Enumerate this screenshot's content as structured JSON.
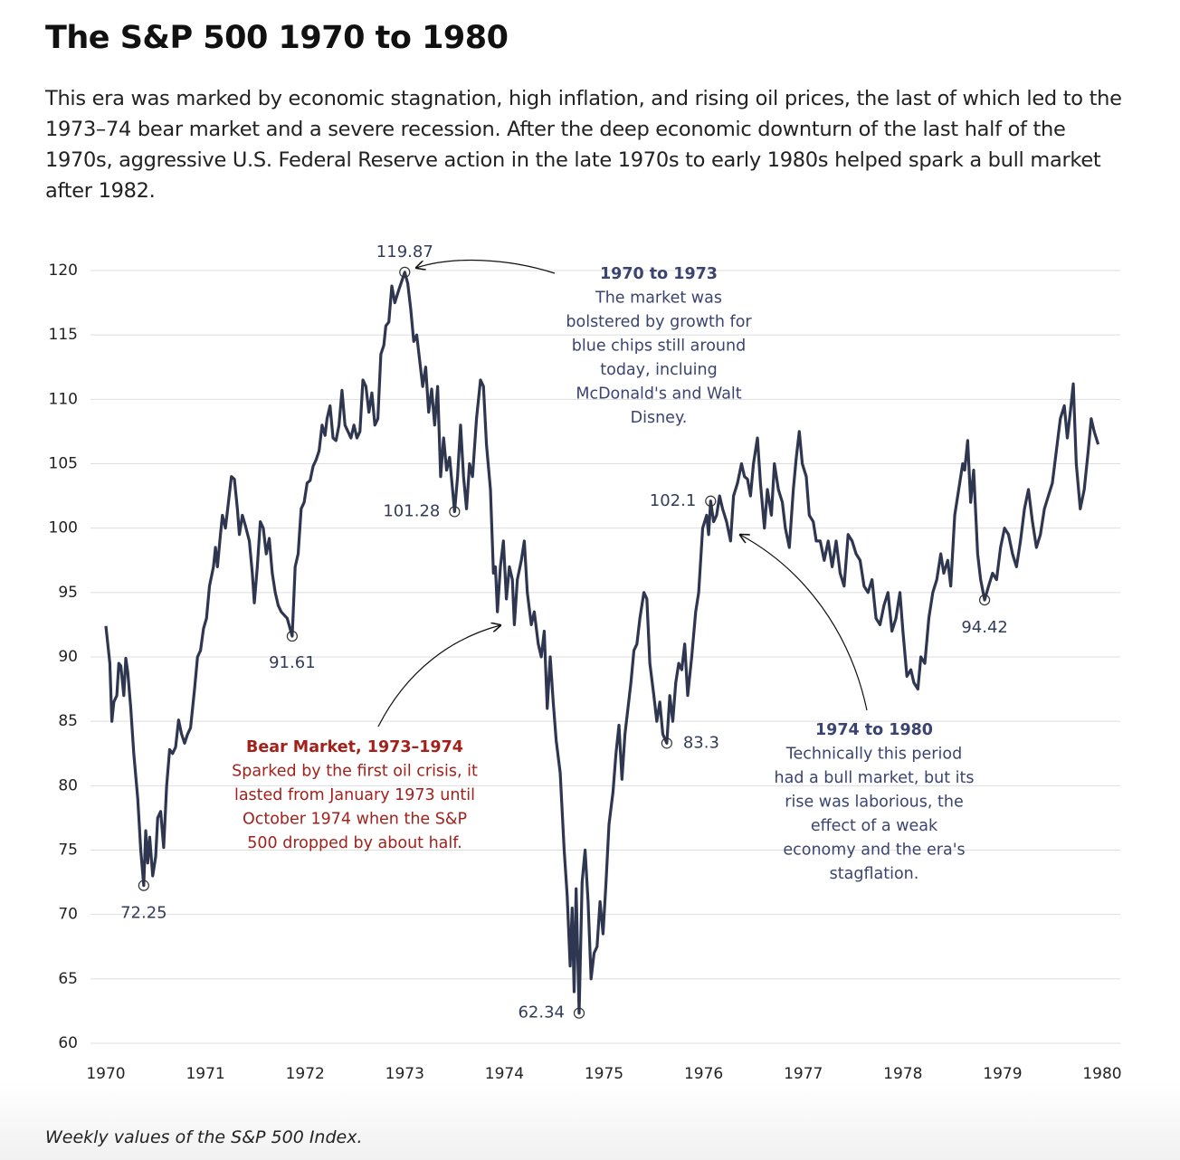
{
  "chart_data": {
    "type": "line",
    "title": "The S&P 500 1970 to 1980",
    "subtitle": "This era was marked by economic stagnation, high inflation, and rising oil prices, the last of which led to the 1973–74 bear market and a severe recession. After the deep economic downturn of the last half of the 1970s, aggressive U.S. Federal Reserve action in the late 1970s to early 1980s helped spark a bull market after 1982.",
    "footnote": "Weekly values of the S&P 500 Index.",
    "color": "#2f3650",
    "grid": true,
    "xlim": [
      1970,
      1980
    ],
    "ylim": [
      60,
      120
    ],
    "xticks": [
      1970,
      1971,
      1972,
      1973,
      1974,
      1975,
      1976,
      1977,
      1978,
      1979,
      1980
    ],
    "yticks": [
      60,
      65,
      70,
      75,
      80,
      85,
      90,
      95,
      100,
      105,
      110,
      115,
      120
    ],
    "x": [
      1970.0,
      1970.04,
      1970.06,
      1970.08,
      1970.11,
      1970.13,
      1970.15,
      1970.18,
      1970.2,
      1970.22,
      1970.25,
      1970.28,
      1970.32,
      1970.35,
      1970.38,
      1970.4,
      1970.42,
      1970.44,
      1970.47,
      1970.5,
      1970.52,
      1970.55,
      1970.58,
      1970.61,
      1970.64,
      1970.67,
      1970.7,
      1970.73,
      1970.76,
      1970.79,
      1970.82,
      1970.85,
      1970.89,
      1970.92,
      1970.95,
      1970.98,
      1971.01,
      1971.04,
      1971.08,
      1971.1,
      1971.12,
      1971.15,
      1971.17,
      1971.2,
      1971.23,
      1971.26,
      1971.29,
      1971.32,
      1971.34,
      1971.37,
      1971.4,
      1971.44,
      1971.47,
      1971.49,
      1971.52,
      1971.55,
      1971.58,
      1971.61,
      1971.64,
      1971.67,
      1971.7,
      1971.73,
      1971.76,
      1971.82,
      1971.87,
      1971.9,
      1971.93,
      1971.96,
      1971.99,
      1972.02,
      1972.05,
      1972.08,
      1972.11,
      1972.14,
      1972.17,
      1972.2,
      1972.22,
      1972.25,
      1972.28,
      1972.31,
      1972.34,
      1972.37,
      1972.4,
      1972.43,
      1972.46,
      1972.49,
      1972.52,
      1972.55,
      1972.58,
      1972.61,
      1972.64,
      1972.67,
      1972.7,
      1972.73,
      1972.76,
      1972.79,
      1972.81,
      1972.84,
      1972.87,
      1972.9,
      1972.94,
      1973.0,
      1973.03,
      1973.06,
      1973.09,
      1973.12,
      1973.15,
      1973.18,
      1973.21,
      1973.24,
      1973.27,
      1973.3,
      1973.33,
      1973.36,
      1973.39,
      1973.42,
      1973.45,
      1973.5,
      1973.53,
      1973.56,
      1973.59,
      1973.62,
      1973.65,
      1973.68,
      1973.72,
      1973.76,
      1973.79,
      1973.82,
      1973.86,
      1973.89,
      1973.91,
      1973.93,
      1973.96,
      1973.99,
      1974.02,
      1974.05,
      1974.08,
      1974.1,
      1974.13,
      1974.17,
      1974.2,
      1974.23,
      1974.27,
      1974.3,
      1974.34,
      1974.37,
      1974.4,
      1974.43,
      1974.46,
      1974.49,
      1974.52,
      1974.56,
      1974.6,
      1974.63,
      1974.66,
      1974.68,
      1974.7,
      1974.72,
      1974.75,
      1974.78,
      1974.81,
      1974.84,
      1974.87,
      1974.9,
      1974.93,
      1974.96,
      1974.99,
      1975.02,
      1975.05,
      1975.09,
      1975.12,
      1975.15,
      1975.18,
      1975.21,
      1975.24,
      1975.27,
      1975.3,
      1975.33,
      1975.36,
      1975.4,
      1975.43,
      1975.46,
      1975.5,
      1975.53,
      1975.56,
      1975.59,
      1975.63,
      1975.66,
      1975.69,
      1975.72,
      1975.75,
      1975.78,
      1975.81,
      1975.84,
      1975.88,
      1975.92,
      1975.95,
      1975.99,
      1976.03,
      1976.05,
      1976.07,
      1976.1,
      1976.13,
      1976.16,
      1976.19,
      1976.23,
      1976.27,
      1976.3,
      1976.34,
      1976.38,
      1976.41,
      1976.44,
      1976.47,
      1976.5,
      1976.54,
      1976.57,
      1976.61,
      1976.64,
      1976.68,
      1976.71,
      1976.75,
      1976.79,
      1976.82,
      1976.86,
      1976.9,
      1976.93,
      1976.96,
      1976.99,
      1977.03,
      1977.06,
      1977.1,
      1977.13,
      1977.17,
      1977.21,
      1977.25,
      1977.29,
      1977.33,
      1977.37,
      1977.41,
      1977.45,
      1977.49,
      1977.53,
      1977.57,
      1977.61,
      1977.65,
      1977.69,
      1977.73,
      1977.77,
      1977.81,
      1977.85,
      1977.89,
      1977.93,
      1977.97,
      1978.0,
      1978.04,
      1978.08,
      1978.11,
      1978.15,
      1978.18,
      1978.22,
      1978.26,
      1978.3,
      1978.34,
      1978.38,
      1978.41,
      1978.45,
      1978.48,
      1978.52,
      1978.56,
      1978.6,
      1978.62,
      1978.65,
      1978.68,
      1978.71,
      1978.75,
      1978.78,
      1978.82,
      1978.86,
      1978.9,
      1978.94,
      1978.98,
      1979.02,
      1979.06,
      1979.1,
      1979.14,
      1979.18,
      1979.22,
      1979.26,
      1979.3,
      1979.34,
      1979.38,
      1979.42,
      1979.46,
      1979.5,
      1979.54,
      1979.58,
      1979.62,
      1979.65,
      1979.68,
      1979.71,
      1979.74,
      1979.78,
      1979.82,
      1979.86,
      1979.89,
      1979.92,
      1979.96
    ],
    "values": [
      92.4,
      89.5,
      85.0,
      86.5,
      87.0,
      89.5,
      89.3,
      87.0,
      89.9,
      88.8,
      86.0,
      82.5,
      79.0,
      75.0,
      72.25,
      76.5,
      74.0,
      76.0,
      73.0,
      74.5,
      77.5,
      78.0,
      75.2,
      80.0,
      82.8,
      82.5,
      83.0,
      85.1,
      84.0,
      83.3,
      84.0,
      84.5,
      87.5,
      90.0,
      90.5,
      92.2,
      93.0,
      95.5,
      97.0,
      98.5,
      97.0,
      99.5,
      101.0,
      100.0,
      102.0,
      104.0,
      103.8,
      101.5,
      99.5,
      101.0,
      100.2,
      99.0,
      96.5,
      94.2,
      97.0,
      100.5,
      100.0,
      98.0,
      99.2,
      96.5,
      95.0,
      94.0,
      93.5,
      93.0,
      91.61,
      97.0,
      98.0,
      101.5,
      102.0,
      103.5,
      103.7,
      104.8,
      105.3,
      106.0,
      108.0,
      107.2,
      108.5,
      109.5,
      107.0,
      106.8,
      108.0,
      110.7,
      108.0,
      107.5,
      107.0,
      108.0,
      107.0,
      107.5,
      111.5,
      111.0,
      109.0,
      110.5,
      108.0,
      108.5,
      113.5,
      114.2,
      115.7,
      116.0,
      118.8,
      117.5,
      118.5,
      119.87,
      119.0,
      117.0,
      114.5,
      115.0,
      113.0,
      111.0,
      112.5,
      109.0,
      110.8,
      108.0,
      111.0,
      104.0,
      107.0,
      104.5,
      105.5,
      101.28,
      104.0,
      108.0,
      104.0,
      101.5,
      105.0,
      104.0,
      108.5,
      111.5,
      111.0,
      106.5,
      103.0,
      96.5,
      97.0,
      93.5,
      97.0,
      99.0,
      94.5,
      97.0,
      96.0,
      92.5,
      96.0,
      97.5,
      99.0,
      95.0,
      92.5,
      93.5,
      91.0,
      90.0,
      92.0,
      86.0,
      90.0,
      86.5,
      83.5,
      81.0,
      75.0,
      71.5,
      66.0,
      70.5,
      64.0,
      72.0,
      62.34,
      72.5,
      75.0,
      71.0,
      65.0,
      67.0,
      67.5,
      71.0,
      68.5,
      72.5,
      77.0,
      79.5,
      82.5,
      84.7,
      80.5,
      84.0,
      86.0,
      88.0,
      90.5,
      91.0,
      93.0,
      95.0,
      94.5,
      89.5,
      87.0,
      85.0,
      86.5,
      84.0,
      83.3,
      87.0,
      85.0,
      88.0,
      89.5,
      89.0,
      91.0,
      87.0,
      90.0,
      93.5,
      95.0,
      100.0,
      101.0,
      99.5,
      102.1,
      100.5,
      101.0,
      102.5,
      101.5,
      100.5,
      99.0,
      102.5,
      103.5,
      105.0,
      104.0,
      103.8,
      102.5,
      105.0,
      107.0,
      103.5,
      100.0,
      103.0,
      101.0,
      105.0,
      103.0,
      102.0,
      100.0,
      98.5,
      103.0,
      105.5,
      107.5,
      105.0,
      104.0,
      101.0,
      100.5,
      99.0,
      99.0,
      97.5,
      99.0,
      97.0,
      99.0,
      96.5,
      95.5,
      99.5,
      99.0,
      98.0,
      97.5,
      95.5,
      95.0,
      96.0,
      93.0,
      92.5,
      94.0,
      95.0,
      92.0,
      93.0,
      95.0,
      92.0,
      88.5,
      89.0,
      88.0,
      87.5,
      90.0,
      89.5,
      93.0,
      95.0,
      96.0,
      98.0,
      96.5,
      97.5,
      95.5,
      101.0,
      103.0,
      105.0,
      104.5,
      106.8,
      102.0,
      104.5,
      98.0,
      96.0,
      94.42,
      95.5,
      96.5,
      96.0,
      98.5,
      100.0,
      99.5,
      98.0,
      97.0,
      99.0,
      101.5,
      103.0,
      100.5,
      98.5,
      99.5,
      101.5,
      102.5,
      103.5,
      106.0,
      108.5,
      109.5,
      107.0,
      109.0,
      111.2,
      105.0,
      101.5,
      103.0,
      106.0,
      108.5,
      107.5,
      106.5
    ],
    "markers": [
      {
        "x": 1970.38,
        "value": 72.25
      },
      {
        "x": 1971.87,
        "value": 91.61
      },
      {
        "x": 1973.0,
        "value": 119.87
      },
      {
        "x": 1973.5,
        "value": 101.28
      },
      {
        "x": 1974.75,
        "value": 62.34
      },
      {
        "x": 1975.63,
        "value": 83.3
      },
      {
        "x": 1976.07,
        "value": 102.1
      },
      {
        "x": 1978.82,
        "value": 94.42
      }
    ],
    "annotations": [
      {
        "title": "1970 to 1973",
        "color": "#3b4470",
        "lines": [
          "The market was",
          "bolstered by growth for",
          "blue chips still around",
          "today, incluing",
          "McDonald's and Walt",
          "Disney."
        ]
      },
      {
        "title": "Bear Market, 1973–1974",
        "color": "#a3211b",
        "lines": [
          "Sparked by the first oil crisis, it",
          "lasted from January 1973 until",
          "October 1974 when the S&P",
          "500 dropped by about half."
        ]
      },
      {
        "title": "1974 to 1980",
        "color": "#3b4470",
        "lines": [
          "Technically this period",
          "had a bull market, but its",
          "rise was laborious, the",
          "effect of a weak",
          "economy and the era's",
          "stagflation."
        ]
      }
    ]
  }
}
